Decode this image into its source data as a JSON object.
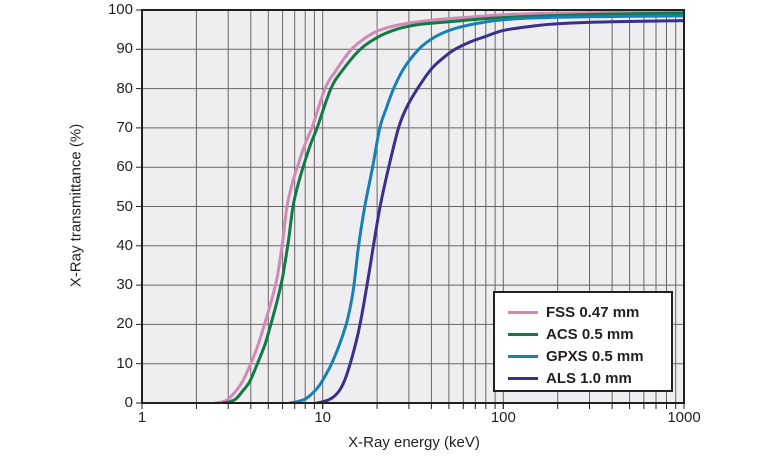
{
  "chart_data": {
    "type": "line",
    "title": "",
    "xlabel": "X-Ray energy (keV)",
    "ylabel": "X-Ray transmittance (%)",
    "x_scale": "log",
    "xlim": [
      1,
      1000
    ],
    "ylim": [
      0,
      100
    ],
    "x_ticks": [
      "1",
      "10",
      "100",
      "1000"
    ],
    "x_tick_values": [
      1,
      10,
      100,
      1000
    ],
    "y_ticks": [
      0,
      10,
      20,
      30,
      40,
      50,
      60,
      70,
      80,
      90,
      100
    ],
    "grid": "log-minor-x and 10%-steps-y, dark gray on light gray panel",
    "legend_position": "inside bottom-right",
    "frame_color": "#231f20",
    "grid_color": "#6a6666",
    "plot_bg": "#eeedef",
    "series": [
      {
        "name": "FSS 0.47 mm",
        "color": "#d289b4",
        "points": [
          [
            2.55,
            0
          ],
          [
            2.8,
            0.3
          ],
          [
            3.0,
            1
          ],
          [
            3.3,
            3
          ],
          [
            3.6,
            5.5
          ],
          [
            4.0,
            10
          ],
          [
            4.4,
            15
          ],
          [
            4.8,
            20.5
          ],
          [
            5.2,
            26
          ],
          [
            5.6,
            32
          ],
          [
            6.0,
            41
          ],
          [
            6.35,
            50
          ],
          [
            6.8,
            56
          ],
          [
            7.3,
            60.5
          ],
          [
            8.0,
            66
          ],
          [
            8.8,
            70.5
          ],
          [
            10.3,
            80
          ],
          [
            11.8,
            84.5
          ],
          [
            14.3,
            89.8
          ],
          [
            17,
            92.7
          ],
          [
            20.5,
            94.8
          ],
          [
            27,
            96.3
          ],
          [
            40,
            97.4
          ],
          [
            65,
            98.2
          ],
          [
            100,
            98.8
          ],
          [
            200,
            99.2
          ],
          [
            450,
            99.4
          ],
          [
            1000,
            99.6
          ]
        ]
      },
      {
        "name": "ACS 0.5 mm",
        "color": "#127a46",
        "points": [
          [
            2.8,
            0
          ],
          [
            3.05,
            0.3
          ],
          [
            3.3,
            1
          ],
          [
            3.6,
            3
          ],
          [
            3.95,
            5.5
          ],
          [
            4.35,
            10
          ],
          [
            4.8,
            15
          ],
          [
            5.2,
            20.5
          ],
          [
            5.6,
            26
          ],
          [
            6.0,
            32
          ],
          [
            6.45,
            41
          ],
          [
            6.85,
            50
          ],
          [
            7.35,
            56
          ],
          [
            7.85,
            60.5
          ],
          [
            8.6,
            66
          ],
          [
            9.4,
            70.5
          ],
          [
            11.1,
            80
          ],
          [
            12.8,
            84.5
          ],
          [
            16,
            89.8
          ],
          [
            19.5,
            92.7
          ],
          [
            24.5,
            94.8
          ],
          [
            33,
            96.2
          ],
          [
            50,
            97
          ],
          [
            80,
            97.8
          ],
          [
            150,
            98.4
          ],
          [
            350,
            98.9
          ],
          [
            1000,
            99.2
          ]
        ]
      },
      {
        "name": "GPXS 0.5 mm",
        "color": "#1880b6",
        "points": [
          [
            6.6,
            0
          ],
          [
            7.3,
            0.4
          ],
          [
            8.0,
            1
          ],
          [
            8.8,
            2.5
          ],
          [
            9.6,
            4.5
          ],
          [
            10.5,
            7.5
          ],
          [
            11.2,
            10
          ],
          [
            12.3,
            14.5
          ],
          [
            13.5,
            20
          ],
          [
            14.3,
            25
          ],
          [
            14.9,
            30
          ],
          [
            15.8,
            40
          ],
          [
            17.1,
            50
          ],
          [
            18.9,
            60
          ],
          [
            20.7,
            70
          ],
          [
            22.5,
            75
          ],
          [
            24.7,
            80
          ],
          [
            28,
            85
          ],
          [
            34,
            90
          ],
          [
            40,
            92.6
          ],
          [
            47,
            94.3
          ],
          [
            57,
            95.6
          ],
          [
            72,
            96.6
          ],
          [
            100,
            97.5
          ],
          [
            150,
            98
          ],
          [
            300,
            98.3
          ],
          [
            1000,
            98.5
          ]
        ]
      },
      {
        "name": "ALS 1.0 mm",
        "color": "#38308c",
        "points": [
          [
            9.3,
            0
          ],
          [
            10.2,
            0.4
          ],
          [
            11.2,
            1.2
          ],
          [
            12.3,
            3
          ],
          [
            13.3,
            6
          ],
          [
            14.2,
            10
          ],
          [
            15.2,
            15
          ],
          [
            16.1,
            20
          ],
          [
            17.6,
            30
          ],
          [
            19.1,
            40
          ],
          [
            20.8,
            50
          ],
          [
            23.2,
            60
          ],
          [
            26.3,
            70
          ],
          [
            29,
            75
          ],
          [
            33.5,
            80
          ],
          [
            40,
            85
          ],
          [
            47,
            88
          ],
          [
            54,
            90
          ],
          [
            65,
            91.8
          ],
          [
            80,
            93.3
          ],
          [
            100,
            94.8
          ],
          [
            140,
            95.8
          ],
          [
            200,
            96.5
          ],
          [
            400,
            97
          ],
          [
            1000,
            97.3
          ]
        ]
      }
    ]
  }
}
